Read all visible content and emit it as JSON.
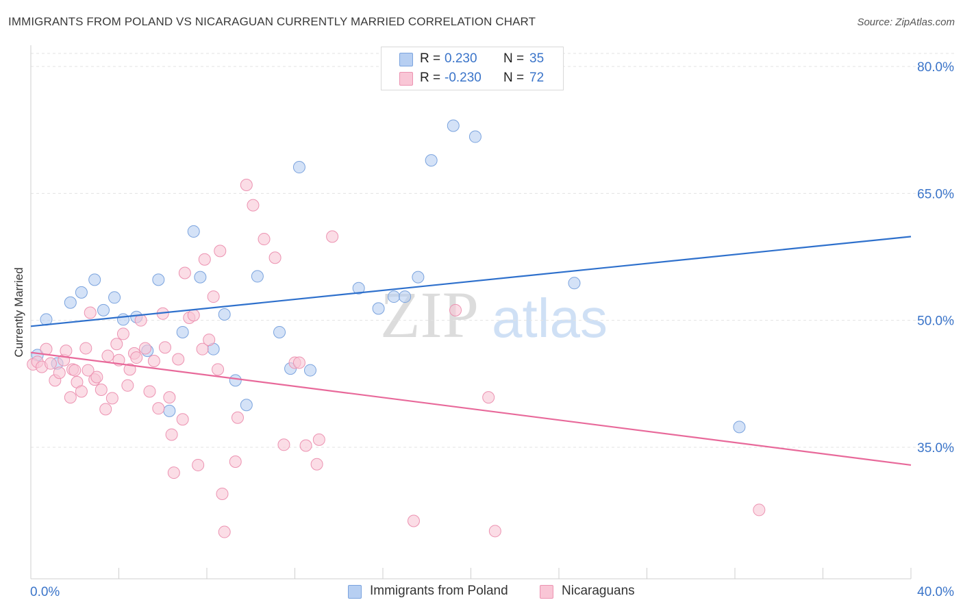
{
  "title": "IMMIGRANTS FROM POLAND VS NICARAGUAN CURRENTLY MARRIED CORRELATION CHART",
  "source": "Source: ZipAtlas.com",
  "watermark": {
    "zip": "ZIP",
    "atlas": "atlas"
  },
  "legend": {
    "series1": {
      "r_label": "R =",
      "r_value": "0.230",
      "n_label": "N =",
      "n_value": "35"
    },
    "series2": {
      "r_label": "R =",
      "r_value": "-0.230",
      "n_label": "N =",
      "n_value": "72"
    }
  },
  "colors": {
    "series1_fill": "#b7cff2",
    "series1_stroke": "#7aa3de",
    "series1_line": "#2e70cc",
    "series2_fill": "#f9c6d6",
    "series2_stroke": "#ec92b1",
    "series2_line": "#e8699a",
    "tick_label": "#3a74c9",
    "grid": "#e3e3e3"
  },
  "chart_data": {
    "type": "scatter",
    "title": "IMMIGRANTS FROM POLAND VS NICARAGUAN CURRENTLY MARRIED CORRELATION CHART",
    "xlabel": "",
    "ylabel": "Currently Married",
    "xlim": [
      0,
      40
    ],
    "ylim": [
      20,
      82
    ],
    "x_tick_labels": [
      "0.0%",
      "40.0%"
    ],
    "y_ticks": [
      35,
      50,
      65,
      80
    ],
    "y_tick_labels": [
      "35.0%",
      "50.0%",
      "65.0%",
      "80.0%"
    ],
    "grid": true,
    "legend_position": "top-center",
    "series": [
      {
        "name": "Immigrants from Poland",
        "trend": [
          [
            0,
            49.3
          ],
          [
            40,
            59.9
          ]
        ],
        "points": [
          [
            0.3,
            45.9
          ],
          [
            0.7,
            50.1
          ],
          [
            1.2,
            44.9
          ],
          [
            1.8,
            52.1
          ],
          [
            2.3,
            53.3
          ],
          [
            2.9,
            54.8
          ],
          [
            3.3,
            51.2
          ],
          [
            3.8,
            52.7
          ],
          [
            4.2,
            50.1
          ],
          [
            4.8,
            50.4
          ],
          [
            5.3,
            46.4
          ],
          [
            5.8,
            54.8
          ],
          [
            6.3,
            39.3
          ],
          [
            6.9,
            48.6
          ],
          [
            7.4,
            60.5
          ],
          [
            7.7,
            55.1
          ],
          [
            8.3,
            46.6
          ],
          [
            8.8,
            50.7
          ],
          [
            9.3,
            42.9
          ],
          [
            9.8,
            40.0
          ],
          [
            10.3,
            55.2
          ],
          [
            11.3,
            48.6
          ],
          [
            11.8,
            44.3
          ],
          [
            12.2,
            68.1
          ],
          [
            12.7,
            44.1
          ],
          [
            14.9,
            53.8
          ],
          [
            15.8,
            51.4
          ],
          [
            16.5,
            52.8
          ],
          [
            17.0,
            52.8
          ],
          [
            17.6,
            55.1
          ],
          [
            18.2,
            68.9
          ],
          [
            19.2,
            73.0
          ],
          [
            20.2,
            71.7
          ],
          [
            24.7,
            54.4
          ],
          [
            32.2,
            37.4
          ]
        ]
      },
      {
        "name": "Nicaraguans",
        "trend": [
          [
            0,
            46.2
          ],
          [
            40,
            32.9
          ]
        ],
        "points": [
          [
            0.1,
            44.8
          ],
          [
            0.3,
            45.1
          ],
          [
            0.5,
            44.5
          ],
          [
            0.7,
            46.6
          ],
          [
            0.9,
            44.9
          ],
          [
            1.1,
            42.9
          ],
          [
            1.3,
            43.8
          ],
          [
            1.5,
            45.3
          ],
          [
            1.6,
            46.4
          ],
          [
            1.8,
            40.9
          ],
          [
            1.9,
            44.2
          ],
          [
            2.0,
            44.1
          ],
          [
            2.1,
            42.7
          ],
          [
            2.3,
            41.6
          ],
          [
            2.5,
            46.7
          ],
          [
            2.6,
            44.1
          ],
          [
            2.7,
            50.9
          ],
          [
            2.9,
            43.0
          ],
          [
            3.0,
            43.3
          ],
          [
            3.2,
            41.8
          ],
          [
            3.4,
            39.5
          ],
          [
            3.5,
            45.8
          ],
          [
            3.7,
            40.8
          ],
          [
            3.9,
            47.2
          ],
          [
            4.0,
            45.3
          ],
          [
            4.2,
            48.4
          ],
          [
            4.4,
            42.3
          ],
          [
            4.5,
            44.2
          ],
          [
            4.7,
            46.1
          ],
          [
            4.8,
            45.6
          ],
          [
            5.0,
            50.0
          ],
          [
            5.2,
            46.7
          ],
          [
            5.4,
            41.6
          ],
          [
            5.6,
            45.2
          ],
          [
            5.8,
            39.6
          ],
          [
            6.0,
            50.8
          ],
          [
            6.1,
            46.8
          ],
          [
            6.3,
            40.9
          ],
          [
            6.4,
            36.5
          ],
          [
            6.5,
            32.0
          ],
          [
            6.7,
            45.4
          ],
          [
            6.9,
            38.3
          ],
          [
            7.0,
            55.6
          ],
          [
            7.2,
            50.3
          ],
          [
            7.4,
            50.6
          ],
          [
            7.6,
            32.9
          ],
          [
            7.8,
            46.6
          ],
          [
            7.9,
            57.2
          ],
          [
            8.1,
            47.7
          ],
          [
            8.3,
            52.8
          ],
          [
            8.5,
            44.2
          ],
          [
            8.6,
            58.2
          ],
          [
            8.7,
            29.5
          ],
          [
            8.8,
            25.0
          ],
          [
            9.3,
            33.3
          ],
          [
            9.4,
            38.5
          ],
          [
            9.8,
            66.0
          ],
          [
            10.1,
            63.6
          ],
          [
            10.6,
            59.6
          ],
          [
            11.1,
            57.4
          ],
          [
            11.5,
            35.3
          ],
          [
            12.0,
            45.0
          ],
          [
            12.2,
            45.0
          ],
          [
            12.5,
            35.2
          ],
          [
            13.0,
            33.0
          ],
          [
            13.1,
            35.9
          ],
          [
            13.7,
            59.9
          ],
          [
            17.4,
            26.3
          ],
          [
            19.3,
            51.2
          ],
          [
            20.8,
            40.9
          ],
          [
            21.1,
            25.1
          ],
          [
            33.1,
            27.6
          ]
        ]
      }
    ]
  }
}
